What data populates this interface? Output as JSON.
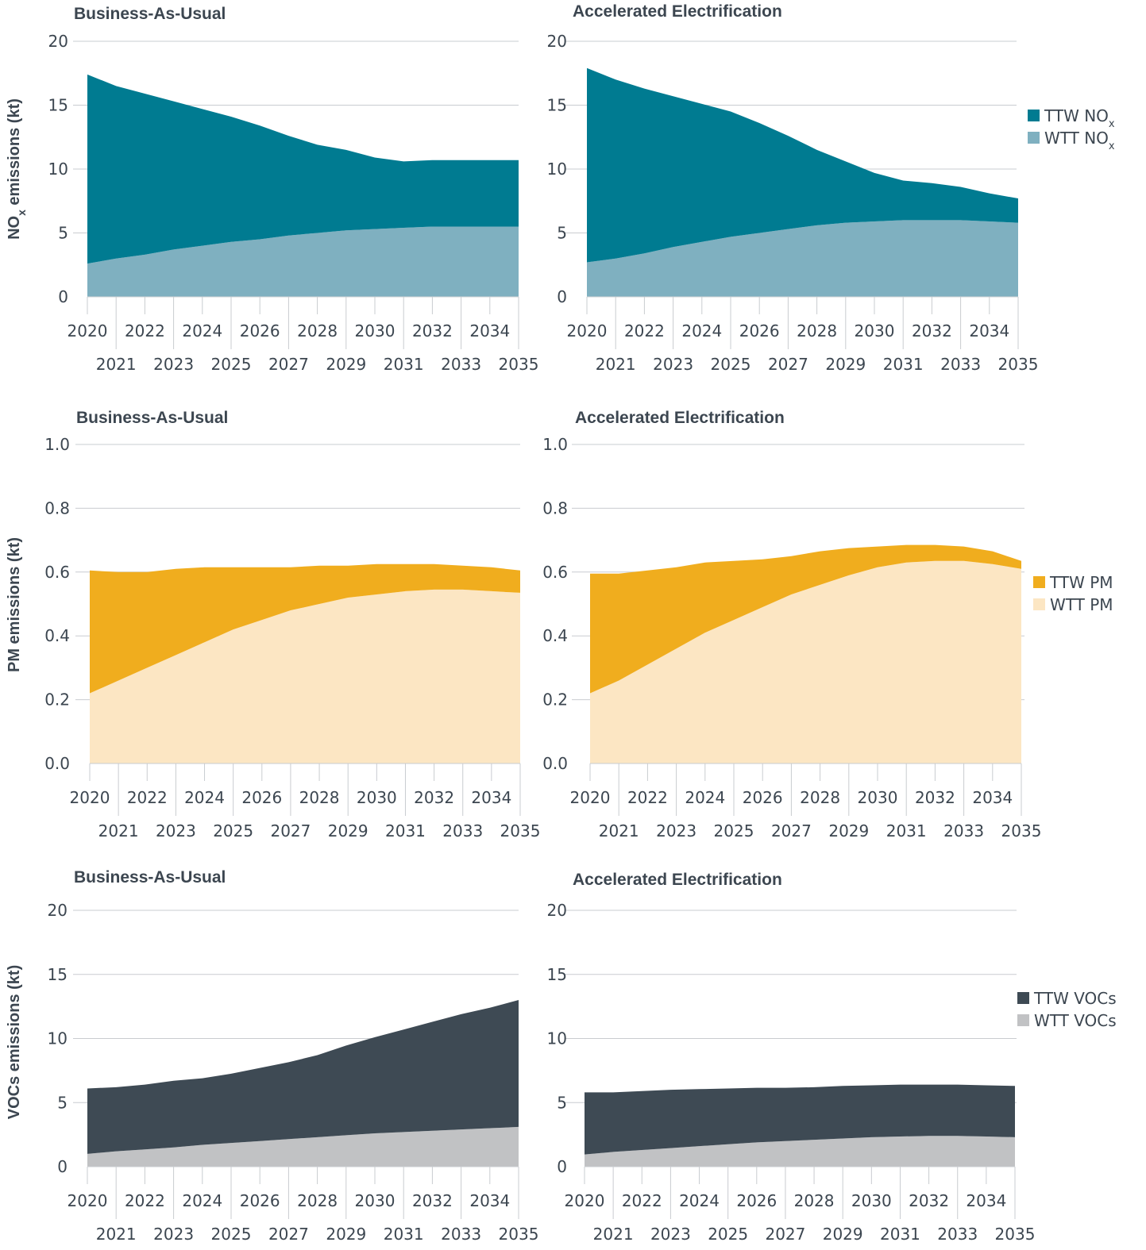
{
  "chart_data": [
    {
      "type": "area",
      "stacked": true,
      "title": "Business-As-Usual",
      "ylabel": "NOx emissions (kt)",
      "ylim": [
        0,
        20
      ],
      "yticks": [
        0,
        5,
        10,
        15,
        20
      ],
      "grid": true,
      "x": [
        2020,
        2021,
        2022,
        2023,
        2024,
        2025,
        2026,
        2027,
        2028,
        2029,
        2030,
        2031,
        2032,
        2033,
        2034,
        2035
      ],
      "series": [
        {
          "name": "WTT NOx",
          "color": "#7fb0c0",
          "values": [
            2.6,
            3.0,
            3.3,
            3.7,
            4.0,
            4.3,
            4.5,
            4.8,
            5.0,
            5.2,
            5.3,
            5.4,
            5.5,
            5.5,
            5.5,
            5.5
          ]
        },
        {
          "name": "TTW NOx",
          "color": "#007b91",
          "values": [
            14.8,
            13.5,
            12.6,
            11.6,
            10.7,
            9.8,
            8.9,
            7.8,
            6.9,
            6.3,
            5.6,
            5.2,
            5.2,
            5.2,
            5.2,
            5.2
          ]
        }
      ]
    },
    {
      "type": "area",
      "stacked": true,
      "title": "Accelerated Electrification",
      "ylim": [
        0,
        20
      ],
      "yticks": [
        0,
        5,
        10,
        15,
        20
      ],
      "grid": true,
      "x": [
        2020,
        2021,
        2022,
        2023,
        2024,
        2025,
        2026,
        2027,
        2028,
        2029,
        2030,
        2031,
        2032,
        2033,
        2034,
        2035
      ],
      "series": [
        {
          "name": "WTT NOx",
          "color": "#7fb0c0",
          "values": [
            2.7,
            3.0,
            3.4,
            3.9,
            4.3,
            4.7,
            5.0,
            5.3,
            5.6,
            5.8,
            5.9,
            6.0,
            6.0,
            6.0,
            5.9,
            5.8
          ]
        },
        {
          "name": "TTW NOx",
          "color": "#007b91",
          "values": [
            15.2,
            14.0,
            12.9,
            11.8,
            10.8,
            9.8,
            8.6,
            7.3,
            5.9,
            4.8,
            3.8,
            3.1,
            2.9,
            2.6,
            2.2,
            1.9
          ]
        }
      ],
      "legend": {
        "position": "right",
        "items": [
          {
            "label": "TTW NO",
            "sub": "x",
            "color": "#007b91"
          },
          {
            "label": "WTT NO",
            "sub": "x",
            "color": "#7fb0c0"
          }
        ]
      }
    },
    {
      "type": "area",
      "stacked": true,
      "title": "Business-As-Usual",
      "ylabel": "PM emissions (kt)",
      "ylim": [
        0,
        1.0
      ],
      "yticks": [
        "0.0",
        "0.2",
        "0.4",
        "0.6",
        "0.8",
        "1.0"
      ],
      "grid": true,
      "x": [
        2020,
        2021,
        2022,
        2023,
        2024,
        2025,
        2026,
        2027,
        2028,
        2029,
        2030,
        2031,
        2032,
        2033,
        2034,
        2035
      ],
      "series": [
        {
          "name": "WTT PM",
          "color": "#fce6c3",
          "values": [
            0.22,
            0.26,
            0.3,
            0.34,
            0.38,
            0.42,
            0.45,
            0.48,
            0.5,
            0.52,
            0.53,
            0.54,
            0.545,
            0.545,
            0.54,
            0.535
          ]
        },
        {
          "name": "TTW PM",
          "color": "#f0ad1e",
          "values": [
            0.385,
            0.34,
            0.3,
            0.27,
            0.235,
            0.195,
            0.165,
            0.135,
            0.12,
            0.1,
            0.095,
            0.085,
            0.08,
            0.075,
            0.075,
            0.07
          ]
        }
      ]
    },
    {
      "type": "area",
      "stacked": true,
      "title": "Accelerated Electrification",
      "ylim": [
        0,
        1.0
      ],
      "yticks": [
        "0.0",
        "0.2",
        "0.4",
        "0.6",
        "0.8",
        "1.0"
      ],
      "grid": true,
      "x": [
        2020,
        2021,
        2022,
        2023,
        2024,
        2025,
        2026,
        2027,
        2028,
        2029,
        2030,
        2031,
        2032,
        2033,
        2034,
        2035
      ],
      "series": [
        {
          "name": "WTT PM",
          "color": "#fce6c3",
          "values": [
            0.22,
            0.26,
            0.31,
            0.36,
            0.41,
            0.45,
            0.49,
            0.53,
            0.56,
            0.59,
            0.615,
            0.63,
            0.635,
            0.635,
            0.625,
            0.61
          ]
        },
        {
          "name": "TTW PM",
          "color": "#f0ad1e",
          "values": [
            0.375,
            0.335,
            0.295,
            0.255,
            0.22,
            0.185,
            0.15,
            0.12,
            0.105,
            0.085,
            0.065,
            0.055,
            0.05,
            0.045,
            0.04,
            0.025
          ]
        }
      ],
      "legend": {
        "position": "right",
        "items": [
          {
            "label": "TTW PM",
            "color": "#f0ad1e"
          },
          {
            "label": "WTT PM",
            "color": "#fce6c3"
          }
        ]
      }
    },
    {
      "type": "area",
      "stacked": true,
      "title": "Business-As-Usual",
      "ylabel": "VOCs emissions (kt)",
      "ylim": [
        0,
        20
      ],
      "yticks": [
        0,
        5,
        10,
        15,
        20
      ],
      "grid": true,
      "x": [
        2020,
        2021,
        2022,
        2023,
        2024,
        2025,
        2026,
        2027,
        2028,
        2029,
        2030,
        2031,
        2032,
        2033,
        2034,
        2035
      ],
      "series": [
        {
          "name": "WTT VOCs",
          "color": "#c1c2c4",
          "values": [
            1.0,
            1.2,
            1.35,
            1.5,
            1.7,
            1.85,
            2.0,
            2.15,
            2.3,
            2.45,
            2.6,
            2.7,
            2.8,
            2.9,
            3.0,
            3.1
          ]
        },
        {
          "name": "TTW VOCs",
          "color": "#3e4a54",
          "values": [
            5.1,
            5.0,
            5.05,
            5.2,
            5.2,
            5.4,
            5.7,
            6.0,
            6.4,
            7.0,
            7.5,
            8.0,
            8.5,
            9.0,
            9.4,
            9.9
          ]
        }
      ]
    },
    {
      "type": "area",
      "stacked": true,
      "title": "Accelerated Electrification",
      "ylim": [
        0,
        20
      ],
      "yticks": [
        0,
        5,
        10,
        15,
        20
      ],
      "grid": true,
      "x": [
        2020,
        2021,
        2022,
        2023,
        2024,
        2025,
        2026,
        2027,
        2028,
        2029,
        2030,
        2031,
        2032,
        2033,
        2034,
        2035
      ],
      "series": [
        {
          "name": "WTT VOCs",
          "color": "#c1c2c4",
          "values": [
            0.95,
            1.15,
            1.3,
            1.45,
            1.6,
            1.75,
            1.9,
            2.0,
            2.1,
            2.2,
            2.3,
            2.35,
            2.4,
            2.4,
            2.35,
            2.3
          ]
        },
        {
          "name": "TTW VOCs",
          "color": "#3e4a54",
          "values": [
            4.85,
            4.65,
            4.6,
            4.55,
            4.45,
            4.35,
            4.25,
            4.15,
            4.1,
            4.1,
            4.05,
            4.05,
            4.0,
            4.0,
            4.0,
            4.0
          ]
        }
      ],
      "legend": {
        "position": "right",
        "items": [
          {
            "label": "TTW VOCs",
            "color": "#3e4a54"
          },
          {
            "label": "WTT VOCs",
            "color": "#c1c2c4"
          }
        ]
      }
    }
  ]
}
